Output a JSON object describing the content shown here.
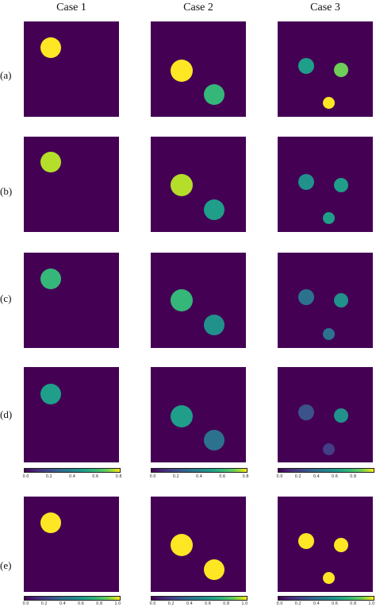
{
  "columns": [
    "Case 1",
    "Case 2",
    "Case 3"
  ],
  "rows": [
    "(a)",
    "(b)",
    "(c)",
    "(d)",
    "(e)"
  ],
  "colors": {
    "background": "#440154",
    "yellow": "#fde725",
    "yellow_green": "#b5de2b",
    "green": "#35b779",
    "teal": "#1f9e89",
    "cyan_teal": "#21918c",
    "blue_teal": "#2c728e",
    "blue": "#3b528b",
    "indigo": "#433e85"
  },
  "colorbars": {
    "d": [
      {
        "ticks": [
          "0.0",
          "0.2",
          "0.4",
          "0.6",
          "0.8"
        ]
      },
      {
        "ticks": [
          "0.0",
          "0.2",
          "0.4",
          "0.6",
          "0.8"
        ]
      },
      {
        "ticks": [
          "0.0",
          "0.2",
          "0.4",
          "0.6",
          "0.8"
        ]
      }
    ],
    "e": [
      {
        "ticks": [
          "0.0",
          "0.2",
          "0.4",
          "0.6",
          "0.8",
          "1.0"
        ]
      },
      {
        "ticks": [
          "0.0",
          "0.2",
          "0.4",
          "0.6",
          "0.8",
          "1.0"
        ]
      },
      {
        "ticks": [
          "0.0",
          "0.2",
          "0.4",
          "0.6",
          "0.8",
          "1.0"
        ]
      }
    ]
  }
}
